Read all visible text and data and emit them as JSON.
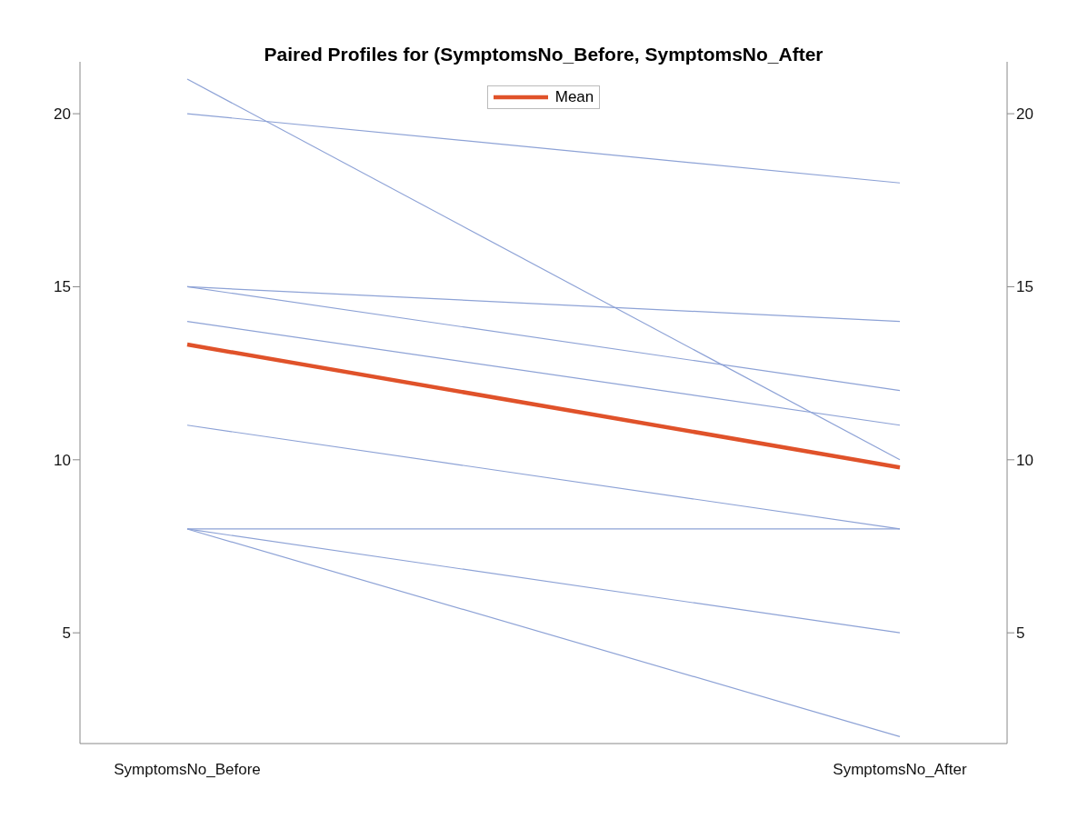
{
  "chart_data": {
    "type": "line",
    "title": "Paired Profiles for (SymptomsNo_Before, SymptomsNo_After",
    "categories": [
      "SymptomsNo_Before",
      "SymptomsNo_After"
    ],
    "series": [
      {
        "color": "#8da2d6",
        "values": [
          21,
          10
        ]
      },
      {
        "color": "#8da2d6",
        "values": [
          20,
          18
        ]
      },
      {
        "color": "#8da2d6",
        "values": [
          15,
          14
        ]
      },
      {
        "color": "#8da2d6",
        "values": [
          15,
          12
        ]
      },
      {
        "color": "#8da2d6",
        "values": [
          14,
          11
        ]
      },
      {
        "color": "#8da2d6",
        "values": [
          11,
          8
        ]
      },
      {
        "color": "#8da2d6",
        "values": [
          8,
          8
        ]
      },
      {
        "color": "#8da2d6",
        "values": [
          8,
          5
        ]
      },
      {
        "color": "#8da2d6",
        "values": [
          8,
          2
        ]
      },
      {
        "name": "Mean",
        "color": "#e0522a",
        "values": [
          13.33,
          9.78
        ]
      }
    ],
    "ylim": [
      1.8,
      21.5
    ],
    "yticks": [
      5,
      10,
      15,
      20
    ],
    "y2lim": [
      1.8,
      21.5
    ],
    "y2ticks": [
      5,
      10,
      15,
      20
    ],
    "grid": false,
    "legend": "top",
    "marker": "none",
    "line_style": "solid"
  }
}
